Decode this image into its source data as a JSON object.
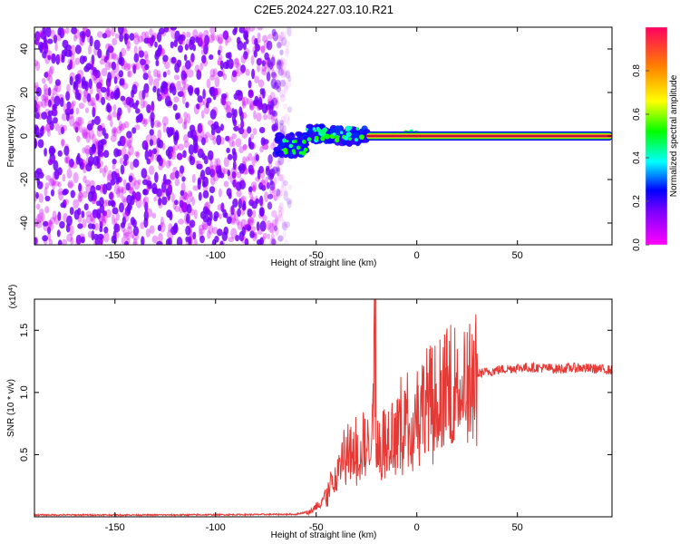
{
  "title": "C2E5.2024.227.03.10.R21",
  "chart_data": [
    {
      "type": "heatmap",
      "xlabel": "Height of straight line (km)",
      "ylabel": "Frequency (Hz)",
      "xlim": [
        -190,
        97
      ],
      "ylim": [
        -50,
        50
      ],
      "x_ticks": [
        -150,
        -100,
        -50,
        0,
        50
      ],
      "y_ticks": [
        -40,
        -20,
        0,
        20,
        40
      ],
      "colorbar": {
        "label": "Normalized spectral amplitude",
        "range": [
          0,
          1
        ],
        "ticks": [
          0.0,
          0.2,
          0.4,
          0.6,
          0.8
        ]
      },
      "regions": [
        {
          "x": [
            -190,
            -63
          ],
          "freq": [
            -50,
            50
          ],
          "amplitude": [
            0.05,
            0.2
          ],
          "pattern": "noise"
        },
        {
          "x": [
            -70,
            -25
          ],
          "freq": [
            -10,
            6
          ],
          "amplitude": [
            0.15,
            0.5
          ],
          "pattern": "cluster"
        },
        {
          "x": [
            -25,
            97
          ],
          "freq": [
            0,
            0
          ],
          "amplitude": [
            0.9,
            1.0
          ],
          "pattern": "line"
        }
      ]
    },
    {
      "type": "line",
      "xlabel": "Height of straight line (km)",
      "ylabel": "SNR (10 * v/v)",
      "y_multiplier": "(x10^4)",
      "y_multiplier_base": "(x10",
      "y_multiplier_exp": "4",
      "y_multiplier_close": ")",
      "xlim": [
        -190,
        97
      ],
      "ylim": [
        0,
        1.75
      ],
      "x_ticks": [
        -150,
        -100,
        -50,
        0,
        50
      ],
      "y_ticks": [
        0.5,
        1.0,
        1.5
      ],
      "line_color": "#e53935",
      "series": [
        {
          "x": [
            -190,
            -120,
            -60,
            -52,
            -48,
            -45,
            -42,
            -40,
            -38,
            -35,
            -32,
            -30,
            -28,
            -26,
            -24,
            -22,
            -21,
            -20,
            -18,
            -15,
            -12,
            -10,
            -5,
            0,
            5,
            10,
            15,
            20,
            25,
            30,
            40,
            50,
            60,
            70,
            80,
            97
          ],
          "values": [
            0.015,
            0.015,
            0.02,
            0.05,
            0.12,
            0.18,
            0.28,
            0.35,
            0.45,
            0.55,
            0.5,
            0.6,
            0.45,
            0.65,
            0.55,
            0.8,
            1.75,
            0.6,
            0.62,
            0.65,
            0.7,
            0.75,
            0.82,
            0.88,
            0.95,
            1.0,
            1.05,
            1.1,
            1.12,
            1.15,
            1.18,
            1.2,
            1.2,
            1.19,
            1.2,
            1.18
          ]
        }
      ]
    }
  ]
}
